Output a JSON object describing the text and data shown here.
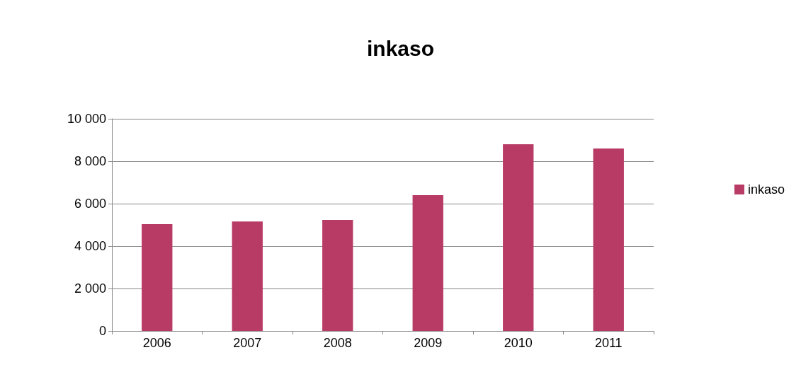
{
  "chart_data": {
    "type": "bar",
    "title": "inkaso",
    "categories": [
      "2006",
      "2007",
      "2008",
      "2009",
      "2010",
      "2011"
    ],
    "series": [
      {
        "name": "inkaso",
        "color": "#b83b65",
        "values": [
          5030,
          5160,
          5230,
          6400,
          8800,
          8600
        ]
      }
    ],
    "ylim": [
      0,
      10000
    ],
    "yticks": [
      {
        "value": 0,
        "label": "0"
      },
      {
        "value": 2000,
        "label": "2 000"
      },
      {
        "value": 4000,
        "label": "4 000"
      },
      {
        "value": 6000,
        "label": "6 000"
      },
      {
        "value": 8000,
        "label": "8 000"
      },
      {
        "value": 10000,
        "label": "10 000"
      }
    ],
    "grid": "y",
    "legend": "right"
  }
}
